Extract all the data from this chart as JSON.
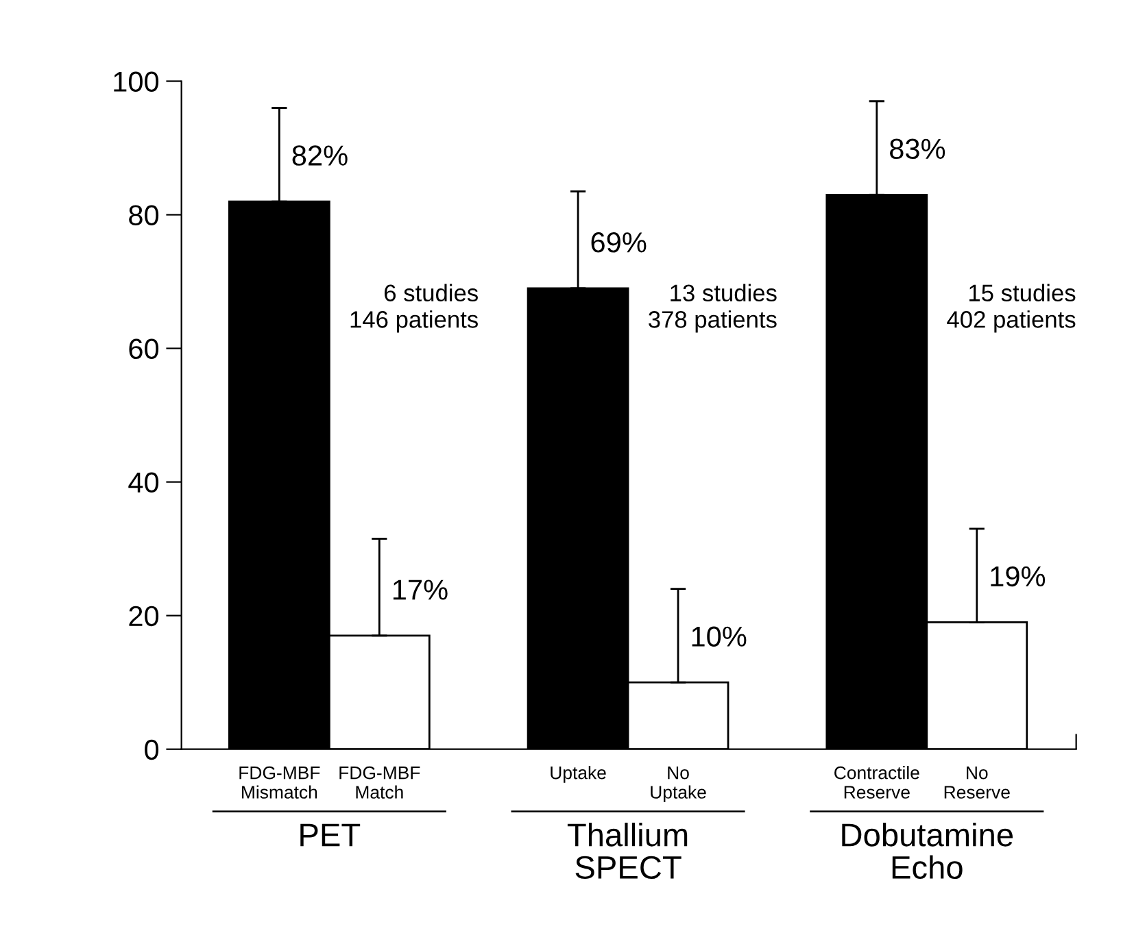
{
  "chart_data": {
    "type": "bar",
    "categories": [
      "PET",
      "Thallium\nSPECT",
      "Dobutamine\nEcho"
    ],
    "series": [
      {
        "color": "#000000",
        "values": [
          82,
          69,
          83
        ],
        "errors": [
          [
            82,
            96
          ],
          [
            69,
            83.5
          ],
          [
            83,
            97
          ]
        ],
        "value_labels": [
          "82%",
          "69%",
          "83%"
        ]
      },
      {
        "color": "#ffffff",
        "values": [
          17,
          10,
          19
        ],
        "errors": [
          [
            17,
            31.5
          ],
          [
            10,
            24
          ],
          [
            19,
            33
          ]
        ],
        "value_labels": [
          "17%",
          "10%",
          "19%"
        ]
      }
    ],
    "ylim": [
      0,
      100
    ],
    "yticks": [
      0,
      20,
      40,
      60,
      80,
      100
    ],
    "grid": false,
    "legend": false,
    "annotations": [
      "FDG-MBF\nMismatch",
      "FDG-MBF\nMatch",
      "Uptake",
      "No\nUptake",
      "Contractile\nReserve",
      "No\nReserve",
      "6 studies\n146 patients",
      "13 studies\n378 patients",
      "15 studies\n402 patients"
    ]
  }
}
